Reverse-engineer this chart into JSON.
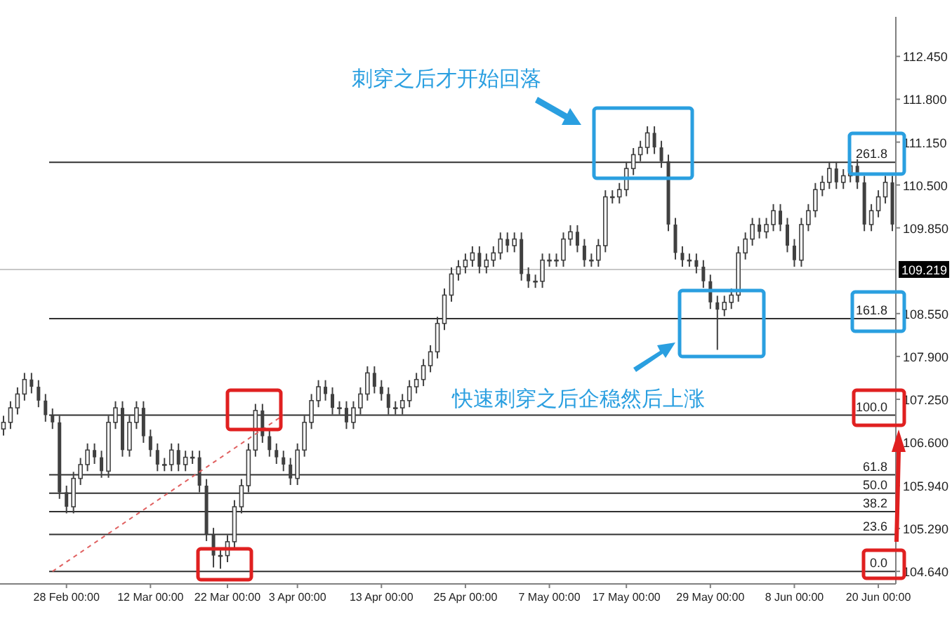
{
  "chart_data": {
    "type": "candlestick",
    "ohlc": [
      [
        106.8,
        107.0,
        106.7,
        106.9
      ],
      [
        106.9,
        107.22,
        106.8,
        107.12
      ],
      [
        107.12,
        107.43,
        107.02,
        107.33
      ],
      [
        107.33,
        107.65,
        107.23,
        107.55
      ],
      [
        107.55,
        107.65,
        107.34,
        107.44
      ],
      [
        107.44,
        107.54,
        107.13,
        107.23
      ],
      [
        107.23,
        107.33,
        106.91,
        107.01
      ],
      [
        107.01,
        107.11,
        106.8,
        106.9
      ],
      [
        106.9,
        107.0,
        105.74,
        105.84
      ],
      [
        105.84,
        105.94,
        105.52,
        105.62
      ],
      [
        105.62,
        106.15,
        105.52,
        106.05
      ],
      [
        106.05,
        106.36,
        105.95,
        106.26
      ],
      [
        106.26,
        106.58,
        106.16,
        106.48
      ],
      [
        106.48,
        106.58,
        106.27,
        106.37
      ],
      [
        106.37,
        106.47,
        106.06,
        106.16
      ],
      [
        106.16,
        107.0,
        106.06,
        106.9
      ],
      [
        106.9,
        107.22,
        106.8,
        107.12
      ],
      [
        107.12,
        107.22,
        106.38,
        106.48
      ],
      [
        106.48,
        107.0,
        106.38,
        106.9
      ],
      [
        106.9,
        107.22,
        106.8,
        107.12
      ],
      [
        107.12,
        107.22,
        106.59,
        106.69
      ],
      [
        106.69,
        106.79,
        106.38,
        106.48
      ],
      [
        106.48,
        106.58,
        106.16,
        106.26
      ],
      [
        106.26,
        106.36,
        106.16,
        106.26
      ],
      [
        106.26,
        106.58,
        106.16,
        106.48
      ],
      [
        106.48,
        106.58,
        106.16,
        106.26
      ],
      [
        106.26,
        106.47,
        106.16,
        106.37
      ],
      [
        106.37,
        106.47,
        106.27,
        106.37
      ],
      [
        106.37,
        106.47,
        105.84,
        105.94
      ],
      [
        105.94,
        106.04,
        105.1,
        105.2
      ],
      [
        105.2,
        105.3,
        104.7,
        104.88
      ],
      [
        104.88,
        104.98,
        104.68,
        104.88
      ],
      [
        104.88,
        105.19,
        104.78,
        105.09
      ],
      [
        105.09,
        105.72,
        104.99,
        105.62
      ],
      [
        105.62,
        106.04,
        105.52,
        105.94
      ],
      [
        105.94,
        106.58,
        105.84,
        106.48
      ],
      [
        106.48,
        107.18,
        106.38,
        107.08
      ],
      [
        107.08,
        107.18,
        106.59,
        106.69
      ],
      [
        106.69,
        106.79,
        106.38,
        106.48
      ],
      [
        106.48,
        106.58,
        106.27,
        106.37
      ],
      [
        106.37,
        106.47,
        106.16,
        106.26
      ],
      [
        106.26,
        106.36,
        105.95,
        106.05
      ],
      [
        106.05,
        106.58,
        105.95,
        106.48
      ],
      [
        106.48,
        107.0,
        106.38,
        106.9
      ],
      [
        106.9,
        107.33,
        106.8,
        107.23
      ],
      [
        107.23,
        107.54,
        107.13,
        107.44
      ],
      [
        107.44,
        107.54,
        107.23,
        107.33
      ],
      [
        107.33,
        107.43,
        107.02,
        107.12
      ],
      [
        107.12,
        107.22,
        107.02,
        107.12
      ],
      [
        107.12,
        107.22,
        106.8,
        106.9
      ],
      [
        106.9,
        107.22,
        106.8,
        107.12
      ],
      [
        107.12,
        107.43,
        107.02,
        107.33
      ],
      [
        107.33,
        107.75,
        107.23,
        107.65
      ],
      [
        107.65,
        107.75,
        107.34,
        107.44
      ],
      [
        107.44,
        107.54,
        107.23,
        107.33
      ],
      [
        107.33,
        107.43,
        107.02,
        107.12
      ],
      [
        107.12,
        107.22,
        107.02,
        107.12
      ],
      [
        107.12,
        107.33,
        107.02,
        107.23
      ],
      [
        107.23,
        107.54,
        107.13,
        107.44
      ],
      [
        107.44,
        107.65,
        107.34,
        107.55
      ],
      [
        107.55,
        107.86,
        107.45,
        107.76
      ],
      [
        107.76,
        108.07,
        107.66,
        107.97
      ],
      [
        107.97,
        108.5,
        107.87,
        108.4
      ],
      [
        108.4,
        108.93,
        108.3,
        108.83
      ],
      [
        108.83,
        109.25,
        108.73,
        109.15
      ],
      [
        109.15,
        109.36,
        109.05,
        109.26
      ],
      [
        109.26,
        109.46,
        109.16,
        109.36
      ],
      [
        109.36,
        109.57,
        109.26,
        109.47
      ],
      [
        109.47,
        109.57,
        109.16,
        109.26
      ],
      [
        109.26,
        109.46,
        109.16,
        109.36
      ],
      [
        109.36,
        109.57,
        109.26,
        109.47
      ],
      [
        109.47,
        109.78,
        109.37,
        109.68
      ],
      [
        109.68,
        109.78,
        109.48,
        109.58
      ],
      [
        109.58,
        109.78,
        109.48,
        109.68
      ],
      [
        109.68,
        109.78,
        109.05,
        109.15
      ],
      [
        109.15,
        109.25,
        108.94,
        109.04
      ],
      [
        109.04,
        109.14,
        108.94,
        109.04
      ],
      [
        109.04,
        109.46,
        108.94,
        109.36
      ],
      [
        109.36,
        109.46,
        109.26,
        109.36
      ],
      [
        109.36,
        109.46,
        109.26,
        109.36
      ],
      [
        109.36,
        109.78,
        109.26,
        109.68
      ],
      [
        109.68,
        109.89,
        109.58,
        109.79
      ],
      [
        109.79,
        109.89,
        109.48,
        109.58
      ],
      [
        109.58,
        109.68,
        109.26,
        109.36
      ],
      [
        109.36,
        109.46,
        109.26,
        109.36
      ],
      [
        109.36,
        109.68,
        109.26,
        109.58
      ],
      [
        109.58,
        110.42,
        109.48,
        110.32
      ],
      [
        110.32,
        110.42,
        110.22,
        110.32
      ],
      [
        110.32,
        110.53,
        110.22,
        110.43
      ],
      [
        110.43,
        110.85,
        110.33,
        110.75
      ],
      [
        110.75,
        111.06,
        110.65,
        110.96
      ],
      [
        110.96,
        111.17,
        110.86,
        111.07
      ],
      [
        111.07,
        111.39,
        110.97,
        111.29
      ],
      [
        111.29,
        111.39,
        110.97,
        111.07
      ],
      [
        111.07,
        111.17,
        110.76,
        110.86
      ],
      [
        110.86,
        110.96,
        109.8,
        109.9
      ],
      [
        109.9,
        110.0,
        109.37,
        109.47
      ],
      [
        109.47,
        109.57,
        109.26,
        109.36
      ],
      [
        109.36,
        109.46,
        109.26,
        109.36
      ],
      [
        109.36,
        109.46,
        109.16,
        109.26
      ],
      [
        109.26,
        109.36,
        108.94,
        109.04
      ],
      [
        109.04,
        109.14,
        108.62,
        108.72
      ],
      [
        108.72,
        108.82,
        108.0,
        108.61
      ],
      [
        108.61,
        108.82,
        108.51,
        108.72
      ],
      [
        108.72,
        108.93,
        108.62,
        108.83
      ],
      [
        108.83,
        109.57,
        108.73,
        109.47
      ],
      [
        109.47,
        109.78,
        109.37,
        109.68
      ],
      [
        109.68,
        110.0,
        109.58,
        109.9
      ],
      [
        109.9,
        110.0,
        109.69,
        109.79
      ],
      [
        109.79,
        110.0,
        109.69,
        109.9
      ],
      [
        109.9,
        110.21,
        109.8,
        110.11
      ],
      [
        110.11,
        110.21,
        109.8,
        109.9
      ],
      [
        109.9,
        110.0,
        109.48,
        109.58
      ],
      [
        109.58,
        109.68,
        109.26,
        109.36
      ],
      [
        109.36,
        110.0,
        109.26,
        109.9
      ],
      [
        109.9,
        110.21,
        109.8,
        110.11
      ],
      [
        110.11,
        110.53,
        110.01,
        110.43
      ],
      [
        110.43,
        110.64,
        110.33,
        110.54
      ],
      [
        110.54,
        110.85,
        110.44,
        110.75
      ],
      [
        110.75,
        110.85,
        110.44,
        110.54
      ],
      [
        110.54,
        110.74,
        110.44,
        110.64
      ],
      [
        110.64,
        110.89,
        110.54,
        110.79
      ],
      [
        110.79,
        110.89,
        110.44,
        110.54
      ],
      [
        110.54,
        110.64,
        109.8,
        109.9
      ],
      [
        109.9,
        110.21,
        109.8,
        110.11
      ],
      [
        110.11,
        110.42,
        110.01,
        110.32
      ],
      [
        110.32,
        110.64,
        110.22,
        110.54
      ],
      [
        110.54,
        110.64,
        109.8,
        109.9
      ]
    ],
    "color": "#404040",
    "series": [
      {
        "type": "line",
        "values": [
          null,
          null,
          null,
          null,
          null,
          null,
          null,
          104.64,
          null,
          null,
          null,
          null,
          null,
          null,
          null,
          null,
          null,
          null,
          null,
          null,
          null,
          null,
          null,
          null,
          null,
          null,
          null,
          null,
          null,
          null,
          null,
          null,
          null,
          null,
          null,
          null,
          null,
          null,
          null,
          null,
          107.01,
          null,
          null,
          null,
          null,
          null,
          null,
          null,
          null,
          null,
          null,
          null,
          null,
          null,
          null,
          null,
          null,
          null,
          null,
          null,
          null,
          null,
          null,
          null,
          null,
          null,
          null,
          null,
          null,
          null,
          null,
          null,
          null,
          null,
          null,
          null,
          null,
          null,
          null,
          null,
          null,
          null,
          null,
          null,
          null,
          null,
          null,
          null,
          null,
          null,
          null,
          null,
          null,
          null,
          null,
          null,
          null,
          null,
          null,
          null,
          null,
          null,
          null,
          null,
          null,
          null,
          null,
          null,
          null,
          null,
          null,
          null,
          null,
          null,
          null,
          null,
          null,
          null,
          null,
          null,
          null,
          null,
          null,
          null,
          null,
          null,
          null,
          null
        ],
        "color": "#e06060",
        "line_style": "dashed"
      }
    ],
    "categories": [
      null,
      null,
      null,
      null,
      null,
      null,
      null,
      null,
      null,
      "28 Feb 00:00",
      null,
      null,
      null,
      null,
      null,
      null,
      null,
      null,
      null,
      null,
      null,
      "12 Mar 00:00",
      null,
      null,
      null,
      null,
      null,
      null,
      null,
      null,
      null,
      null,
      "22 Mar 00:00",
      null,
      null,
      null,
      null,
      null,
      null,
      null,
      null,
      null,
      "3 Apr 00:00",
      null,
      null,
      null,
      null,
      null,
      null,
      null,
      null,
      null,
      null,
      null,
      "13 Apr 00:00",
      null,
      null,
      null,
      null,
      null,
      null,
      null,
      null,
      null,
      null,
      null,
      "25 Apr 00:00",
      null,
      null,
      null,
      null,
      null,
      null,
      null,
      null,
      null,
      null,
      null,
      "7 May 00:00",
      null,
      null,
      null,
      null,
      null,
      null,
      null,
      null,
      null,
      null,
      "17 May 00:00",
      null,
      null,
      null,
      null,
      null,
      null,
      null,
      null,
      null,
      null,
      null,
      "29 May 00:00",
      null,
      null,
      null,
      null,
      null,
      null,
      null,
      null,
      null,
      null,
      null,
      "8 Jun 00:00",
      null,
      null,
      null,
      null,
      null,
      null,
      null,
      null,
      null,
      null,
      null,
      "20 Jun 00:00",
      null,
      null
    ],
    "y2lim": [
      -8.02,
      354.9
    ],
    "ylim": [
      104.45,
      113.05
    ],
    "yticks": [
      {
        "value": 104.64,
        "label": "104.640"
      },
      {
        "value": 105.29,
        "label": "105.290"
      },
      {
        "value": 105.94,
        "label": "105.940"
      },
      {
        "value": 106.6,
        "label": "106.600"
      },
      {
        "value": 107.25,
        "label": "107.250"
      },
      {
        "value": 107.9,
        "label": "107.900"
      },
      {
        "value": 108.55,
        "label": "108.550"
      },
      {
        "value": 109.85,
        "label": "109.850"
      },
      {
        "value": 110.5,
        "label": "110.500"
      },
      {
        "value": 111.15,
        "label": "111.150"
      },
      {
        "value": 111.8,
        "label": "111.800"
      },
      {
        "value": 112.45,
        "label": "112.450"
      }
    ],
    "ref_lines": [
      {
        "axis": "y2",
        "value": 0,
        "label": "0.0",
        "color": "#303030"
      },
      {
        "axis": "y2",
        "value": 23.6,
        "label": "23.6",
        "color": "#303030"
      },
      {
        "axis": "y2",
        "value": 38.2,
        "label": "38.2",
        "color": "#303030"
      },
      {
        "axis": "y2",
        "value": 50,
        "label": "50.0",
        "color": "#303030"
      },
      {
        "axis": "y2",
        "value": 61.8,
        "label": "61.8",
        "color": "#303030"
      },
      {
        "axis": "y2",
        "value": 100,
        "label": "100.0",
        "color": "#303030"
      },
      {
        "axis": "y2",
        "value": 161.8,
        "label": "161.8",
        "color": "#303030"
      },
      {
        "axis": "y2",
        "value": 261.8,
        "label": "261.8",
        "color": "#303030"
      },
      {
        "axis": "y",
        "value": 109.219,
        "label": "109.219",
        "color": "#c8c8c8"
      }
    ],
    "annotations": [
      "刺穿之后才开始回落",
      "快速刺穿之后企稳然后上涨"
    ]
  }
}
